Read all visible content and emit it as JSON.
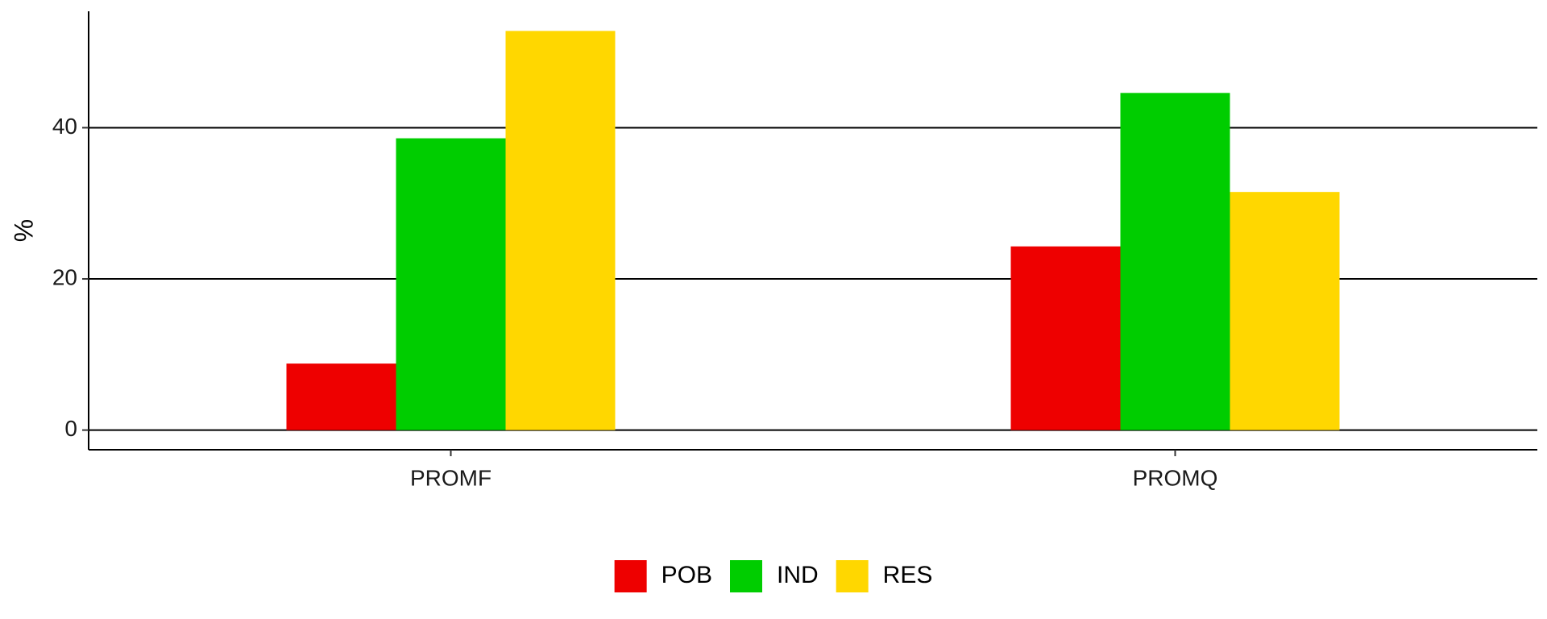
{
  "chart_data": {
    "type": "bar",
    "title": "",
    "xlabel": "",
    "ylabel": "%",
    "categories": [
      "PROMF",
      "PROMQ"
    ],
    "series": [
      {
        "name": "POB",
        "color": "#EE0000",
        "values": [
          8.8,
          24.3
        ]
      },
      {
        "name": "IND",
        "color": "#00CD00",
        "values": [
          38.6,
          44.6
        ]
      },
      {
        "name": "RES",
        "color": "#FFD700",
        "values": [
          52.8,
          31.5
        ]
      }
    ],
    "ylim": [
      -2.6,
      55.4
    ],
    "yticks": [
      0,
      20,
      40
    ],
    "grid": "horizontal-major",
    "legend_position": "bottom"
  }
}
